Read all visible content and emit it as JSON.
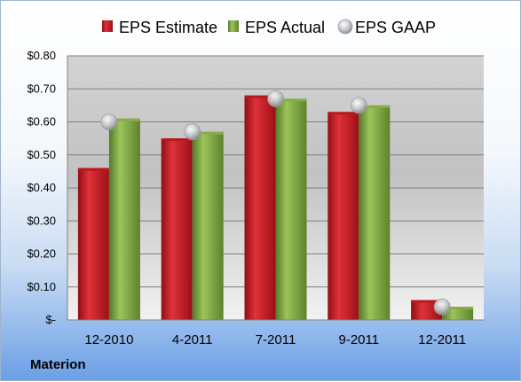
{
  "company": "Materion",
  "chart_data": {
    "type": "bar",
    "categories": [
      "12-2010",
      "4-2011",
      "7-2011",
      "9-2011",
      "12-2011"
    ],
    "series": [
      {
        "name": "EPS Estimate",
        "kind": "bar",
        "color": "#c0141c",
        "values": [
          0.46,
          0.55,
          0.68,
          0.63,
          0.06
        ]
      },
      {
        "name": "EPS Actual",
        "kind": "bar",
        "color": "#7aa33c",
        "values": [
          0.61,
          0.57,
          0.67,
          0.65,
          0.04
        ]
      },
      {
        "name": "EPS GAAP",
        "kind": "marker",
        "color": "#b8bcc4",
        "values": [
          0.6,
          0.57,
          0.67,
          0.65,
          0.04
        ]
      }
    ],
    "ylim": [
      0,
      0.8
    ],
    "yticks": [
      0,
      0.1,
      0.2,
      0.3,
      0.4,
      0.5,
      0.6,
      0.7,
      0.8
    ],
    "ytick_labels": [
      "$-",
      "$0.10",
      "$0.20",
      "$0.30",
      "$0.40",
      "$0.50",
      "$0.60",
      "$0.70",
      "$0.80"
    ],
    "grid": true,
    "legend": "top"
  }
}
